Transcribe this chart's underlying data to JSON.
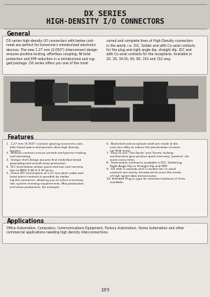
{
  "title_line1": "DX SERIES",
  "title_line2": "HIGH-DENSITY I/O CONNECTORS",
  "page_bg": "#d8d4ce",
  "content_bg": "#e8e5e0",
  "box_bg": "#f5f3f0",
  "box_border": "#999999",
  "header_line_color": "#888866",
  "section_general_title": "General",
  "general_text_left": "DX series high-density I/O connectors with below cost-\nmeet are perfect for tomorrow's miniaturized electronic\ndevices. The new 1.27 mm (0.050\") Interconnect design\nensures positive locking, effortless coupling, Ni-total\nprotection and EMI reduction in a miniaturized and rug-\nged package. DX series offers you one of the most",
  "general_text_right": "varied and complete lines of High-Density connectors\nin the world, i.e. IDC, Solder and with Co-axial contacts\nfor the plug and right angle dip, straight dip, IDC and\nwith Co-axial contacts for the receptacle. Available in\n20, 26, 34,50, 60, 80, 100 and 152 way.",
  "section_features_title": "Features",
  "features_left": [
    "1.  1.27 mm (0.050\") contact spacing conserves valu-\n    able board space and permits ultra-high density\n    layouts.",
    "2.  Bellows contacts ensure smooth and precise mating\n    and unmating.",
    "3.  Unique shell design assures first make/last break\n    grounding and overall noise protection.",
    "4.  IDC termination allows quick and low cost termina-\n    tion to AWG 0.08 & 0.30 wires.",
    "5.  Direct IDC termination of 1.27 mm pitch cable and\n    loose piece contacts is possible by replac-\n    ing the connector, allowing you to select a termina-\n    tion system meeting requirements. Mas production\n    and mass production, for example."
  ],
  "features_right": [
    "6.  Backshell and receptacle shell are made of die-\n    cast zinc alloy to reduce the penetration of exter-\n    nal field noise.",
    "7.  Easy to use 'One-Touch' and 'Screw' locking\n    mechanisms give positive quick and easy 'positive' clo-\n    sures every time.",
    "8.  Termination method is available in IDC, Soldering,\n    Right Angle Dip or Straight Dip and SMT.",
    "9.  DX with 3 coaxials and 3 cavities for Co-axial\n    contacts are wisely introduced to meet the needs\n    of high speed data transmission.",
    "10. Shielded Plug-in type for interface between 2 Units\n    available."
  ],
  "section_applications_title": "Applications",
  "applications_text": "Office Automation, Computers, Communications Equipment, Factory Automation, Home Automation and other\ncommercial applications needing high density interconnections.",
  "page_number": "189",
  "img_bg": "#b8b4ac",
  "img_grid_color": "#cccccc"
}
